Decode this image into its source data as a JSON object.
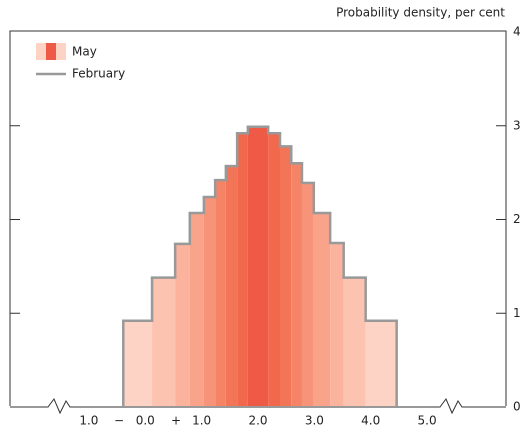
{
  "chart_data": {
    "type": "histogram",
    "y_axis_label": "Probability density, per cent",
    "bins": [
      -0.39,
      0.12,
      0.53,
      0.79,
      1.04,
      1.24,
      1.43,
      1.63,
      1.82,
      2.18,
      2.39,
      2.59,
      2.78,
      2.99,
      3.28,
      3.52,
      3.91,
      4.46
    ],
    "series": [
      {
        "name": "May",
        "colors": [
          "#fdd3c6",
          "#fcc3b1",
          "#fbb39e",
          "#f9a38b",
          "#f79379",
          "#f58467",
          "#f37557",
          "#f1684d",
          "#ee5a46",
          "#f1684d",
          "#f37557",
          "#f58467",
          "#f79379",
          "#f9a38b",
          "#fbb39e",
          "#fcc3b1",
          "#fdd3c6"
        ],
        "values": [
          0.92,
          1.38,
          1.74,
          2.07,
          2.24,
          2.42,
          2.57,
          2.92,
          2.99,
          2.92,
          2.78,
          2.6,
          2.39,
          2.07,
          1.75,
          1.38,
          0.92
        ]
      },
      {
        "name": "February",
        "color": "#999999",
        "values": [
          0.92,
          1.38,
          1.74,
          2.07,
          2.24,
          2.42,
          2.57,
          2.92,
          2.99,
          2.92,
          2.78,
          2.6,
          2.39,
          2.07,
          1.75,
          1.38,
          0.92
        ]
      }
    ],
    "xlim": [
      -2.4,
      6.4
    ],
    "xticks": [
      {
        "value": -1,
        "label": "1.0"
      },
      {
        "value": 0,
        "label": "0.0"
      },
      {
        "value": 1,
        "label": "1.0"
      },
      {
        "value": 2,
        "label": "2.0"
      },
      {
        "value": 3,
        "label": "3.0"
      },
      {
        "value": 4,
        "label": "4.0"
      },
      {
        "value": 5,
        "label": "5.0"
      }
    ],
    "annotations": [
      "−",
      "+"
    ],
    "ylim": [
      0,
      4
    ],
    "yticks": [
      0,
      1,
      2,
      3,
      4
    ]
  }
}
